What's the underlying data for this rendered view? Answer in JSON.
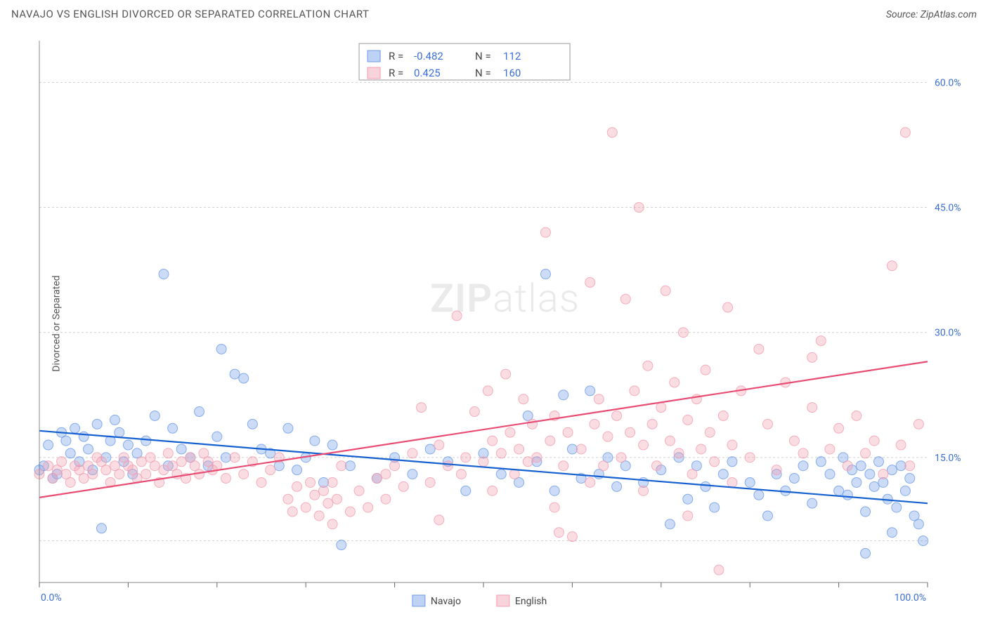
{
  "header": {
    "title": "NAVAJO VS ENGLISH DIVORCED OR SEPARATED CORRELATION CHART",
    "source_prefix": "Source: ",
    "source": "ZipAtlas.com"
  },
  "chart": {
    "ylabel": "Divorced or Separated",
    "xlim": [
      0,
      100
    ],
    "ylim": [
      0,
      65
    ],
    "xticks": [
      0,
      10,
      20,
      30,
      40,
      50,
      60,
      70,
      80,
      90,
      100
    ],
    "xtick_labels": {
      "0": "0.0%",
      "100": "100.0%"
    },
    "yticks": [
      15,
      30,
      45,
      60
    ],
    "ytick_labels": {
      "15": "15.0%",
      "30": "30.0%",
      "45": "45.0%",
      "60": "60.0%"
    },
    "y_grid_extra": [
      0,
      5
    ],
    "background_color": "#ffffff",
    "grid_color": "#d0d0d0",
    "marker_radius": 7,
    "marker_fill_opacity": 0.35,
    "marker_stroke_opacity": 0.8,
    "marker_stroke_width": 1,
    "series": [
      {
        "name": "Navajo",
        "color": "#6d9be8",
        "line_color": "#1560d0",
        "R": "-0.482",
        "N": "112",
        "trend": {
          "x1": 0,
          "y1": 18.2,
          "x2": 100,
          "y2": 9.5
        },
        "points": [
          [
            0,
            13.5
          ],
          [
            0.5,
            14
          ],
          [
            1,
            16.5
          ],
          [
            1.5,
            12.5
          ],
          [
            2,
            13
          ],
          [
            2.5,
            18
          ],
          [
            3,
            17
          ],
          [
            3.5,
            15.5
          ],
          [
            4,
            18.5
          ],
          [
            4.5,
            14.5
          ],
          [
            5,
            17.5
          ],
          [
            5.5,
            16
          ],
          [
            6,
            13.5
          ],
          [
            6.5,
            19
          ],
          [
            7,
            6.5
          ],
          [
            7.5,
            15
          ],
          [
            8,
            17
          ],
          [
            8.5,
            19.5
          ],
          [
            9,
            18
          ],
          [
            9.5,
            14.5
          ],
          [
            10,
            16.5
          ],
          [
            10.5,
            13
          ],
          [
            11,
            15.5
          ],
          [
            12,
            17
          ],
          [
            13,
            20
          ],
          [
            14,
            37
          ],
          [
            14.5,
            14
          ],
          [
            15,
            18.5
          ],
          [
            16,
            16
          ],
          [
            17,
            15
          ],
          [
            18,
            20.5
          ],
          [
            19,
            14
          ],
          [
            20,
            17.5
          ],
          [
            20.5,
            28
          ],
          [
            21,
            15
          ],
          [
            22,
            25
          ],
          [
            23,
            24.5
          ],
          [
            24,
            19
          ],
          [
            25,
            16
          ],
          [
            26,
            15.5
          ],
          [
            27,
            14
          ],
          [
            28,
            18.5
          ],
          [
            29,
            13.5
          ],
          [
            30,
            15
          ],
          [
            31,
            17
          ],
          [
            32,
            12
          ],
          [
            33,
            16.5
          ],
          [
            34,
            4.5
          ],
          [
            35,
            14
          ],
          [
            38,
            12.5
          ],
          [
            40,
            15
          ],
          [
            42,
            13
          ],
          [
            44,
            16
          ],
          [
            46,
            14.5
          ],
          [
            48,
            11
          ],
          [
            50,
            15.5
          ],
          [
            52,
            13
          ],
          [
            54,
            12
          ],
          [
            55,
            20
          ],
          [
            56,
            14.5
          ],
          [
            57,
            37
          ],
          [
            58,
            11
          ],
          [
            59,
            22.5
          ],
          [
            60,
            16
          ],
          [
            61,
            12.5
          ],
          [
            62,
            23
          ],
          [
            63,
            13
          ],
          [
            64,
            15
          ],
          [
            65,
            11.5
          ],
          [
            66,
            14
          ],
          [
            68,
            12
          ],
          [
            70,
            13.5
          ],
          [
            71,
            7
          ],
          [
            72,
            15
          ],
          [
            73,
            10
          ],
          [
            74,
            14
          ],
          [
            75,
            11.5
          ],
          [
            76,
            9
          ],
          [
            77,
            13
          ],
          [
            78,
            14.5
          ],
          [
            80,
            12
          ],
          [
            81,
            10.5
          ],
          [
            82,
            8
          ],
          [
            83,
            13
          ],
          [
            84,
            11
          ],
          [
            85,
            12.5
          ],
          [
            86,
            14
          ],
          [
            87,
            9.5
          ],
          [
            88,
            14.5
          ],
          [
            89,
            13
          ],
          [
            90,
            11
          ],
          [
            90.5,
            15
          ],
          [
            91,
            10.5
          ],
          [
            91.5,
            13.5
          ],
          [
            92,
            12
          ],
          [
            92.5,
            14
          ],
          [
            93,
            8.5
          ],
          [
            93.5,
            13
          ],
          [
            94,
            11.5
          ],
          [
            94.5,
            14.5
          ],
          [
            95,
            12
          ],
          [
            95.5,
            10
          ],
          [
            96,
            13.5
          ],
          [
            96.5,
            9
          ],
          [
            97,
            14
          ],
          [
            97.5,
            11
          ],
          [
            98,
            12.5
          ],
          [
            98.5,
            8
          ],
          [
            99,
            7
          ],
          [
            99.5,
            5
          ],
          [
            93,
            3.5
          ],
          [
            96,
            6
          ]
        ]
      },
      {
        "name": "English",
        "color": "#f29db0",
        "line_color": "#e94c73",
        "R": "0.425",
        "N": "160",
        "trend": {
          "x1": 0,
          "y1": 10.2,
          "x2": 100,
          "y2": 26.5
        },
        "points": [
          [
            0,
            13
          ],
          [
            1,
            14
          ],
          [
            1.5,
            12.5
          ],
          [
            2,
            13.5
          ],
          [
            2.5,
            14.5
          ],
          [
            3,
            13
          ],
          [
            3.5,
            12
          ],
          [
            4,
            14
          ],
          [
            4.5,
            13.5
          ],
          [
            5,
            12.5
          ],
          [
            5.5,
            14
          ],
          [
            6,
            13
          ],
          [
            6.5,
            15
          ],
          [
            7,
            14.5
          ],
          [
            7.5,
            13.5
          ],
          [
            8,
            12
          ],
          [
            8.5,
            14
          ],
          [
            9,
            13
          ],
          [
            9.5,
            15
          ],
          [
            10,
            14
          ],
          [
            10.5,
            13.5
          ],
          [
            11,
            12.5
          ],
          [
            11.5,
            14.5
          ],
          [
            12,
            13
          ],
          [
            12.5,
            15
          ],
          [
            13,
            14
          ],
          [
            13.5,
            12
          ],
          [
            14,
            13.5
          ],
          [
            14.5,
            15.5
          ],
          [
            15,
            14
          ],
          [
            15.5,
            13
          ],
          [
            16,
            14.5
          ],
          [
            16.5,
            12.5
          ],
          [
            17,
            15
          ],
          [
            17.5,
            14
          ],
          [
            18,
            13
          ],
          [
            18.5,
            15.5
          ],
          [
            19,
            14.5
          ],
          [
            19.5,
            13.5
          ],
          [
            20,
            14
          ],
          [
            21,
            12.5
          ],
          [
            22,
            15
          ],
          [
            23,
            13
          ],
          [
            24,
            14.5
          ],
          [
            25,
            12
          ],
          [
            26,
            13.5
          ],
          [
            27,
            15
          ],
          [
            28,
            10
          ],
          [
            28.5,
            8.5
          ],
          [
            29,
            11.5
          ],
          [
            30,
            9
          ],
          [
            30.5,
            12
          ],
          [
            31,
            10.5
          ],
          [
            31.5,
            8
          ],
          [
            32,
            11
          ],
          [
            32.5,
            9.5
          ],
          [
            33,
            12
          ],
          [
            33.5,
            10
          ],
          [
            34,
            14
          ],
          [
            35,
            8.5
          ],
          [
            36,
            11
          ],
          [
            37,
            9
          ],
          [
            38,
            12.5
          ],
          [
            39,
            10
          ],
          [
            40,
            14
          ],
          [
            41,
            11.5
          ],
          [
            42,
            15.5
          ],
          [
            43,
            21
          ],
          [
            44,
            12
          ],
          [
            45,
            16.5
          ],
          [
            46,
            14
          ],
          [
            47,
            32
          ],
          [
            47.5,
            13
          ],
          [
            48,
            15
          ],
          [
            49,
            20.5
          ],
          [
            50,
            14.5
          ],
          [
            50.5,
            23
          ],
          [
            51,
            17
          ],
          [
            52,
            15.5
          ],
          [
            52.5,
            25
          ],
          [
            53,
            18
          ],
          [
            53.5,
            13
          ],
          [
            54,
            16
          ],
          [
            54.5,
            22
          ],
          [
            55,
            14.5
          ],
          [
            55.5,
            19
          ],
          [
            56,
            15
          ],
          [
            57,
            42
          ],
          [
            57.5,
            17
          ],
          [
            58,
            20
          ],
          [
            58.5,
            6
          ],
          [
            59,
            14
          ],
          [
            59.5,
            18
          ],
          [
            60,
            5.5
          ],
          [
            61,
            16
          ],
          [
            62,
            36
          ],
          [
            62.5,
            19
          ],
          [
            63,
            22
          ],
          [
            63.5,
            14
          ],
          [
            64,
            17.5
          ],
          [
            64.5,
            54
          ],
          [
            65,
            20
          ],
          [
            65.5,
            15
          ],
          [
            66,
            34
          ],
          [
            66.5,
            18
          ],
          [
            67,
            23
          ],
          [
            67.5,
            45
          ],
          [
            68,
            16.5
          ],
          [
            68.5,
            26
          ],
          [
            69,
            19
          ],
          [
            69.5,
            14
          ],
          [
            70,
            21
          ],
          [
            70.5,
            35
          ],
          [
            71,
            17
          ],
          [
            71.5,
            24
          ],
          [
            72,
            15.5
          ],
          [
            72.5,
            30
          ],
          [
            73,
            19.5
          ],
          [
            73.5,
            13
          ],
          [
            74,
            22
          ],
          [
            74.5,
            16
          ],
          [
            75,
            25.5
          ],
          [
            75.5,
            18
          ],
          [
            76,
            14.5
          ],
          [
            76.5,
            1.5
          ],
          [
            77,
            20
          ],
          [
            77.5,
            33
          ],
          [
            78,
            16.5
          ],
          [
            79,
            23
          ],
          [
            80,
            15
          ],
          [
            81,
            28
          ],
          [
            82,
            19
          ],
          [
            83,
            13.5
          ],
          [
            84,
            24
          ],
          [
            85,
            17
          ],
          [
            86,
            15.5
          ],
          [
            87,
            21
          ],
          [
            88,
            29
          ],
          [
            89,
            16
          ],
          [
            90,
            18.5
          ],
          [
            91,
            14
          ],
          [
            92,
            20
          ],
          [
            93,
            15.5
          ],
          [
            94,
            17
          ],
          [
            95,
            13
          ],
          [
            96,
            38
          ],
          [
            97,
            16.5
          ],
          [
            97.5,
            54
          ],
          [
            98,
            14
          ],
          [
            99,
            19
          ],
          [
            87,
            27
          ],
          [
            78,
            12
          ],
          [
            73,
            8
          ],
          [
            68,
            11
          ],
          [
            62,
            12
          ],
          [
            58,
            9
          ],
          [
            51,
            11
          ],
          [
            45,
            7.5
          ],
          [
            39,
            13
          ],
          [
            33,
            7
          ]
        ]
      }
    ],
    "watermark": {
      "part1": "ZIP",
      "part2": "atlas"
    },
    "legend_top": {
      "r_label": "R =",
      "n_label": "N ="
    },
    "bottom_legend": [
      "Navajo",
      "English"
    ]
  }
}
